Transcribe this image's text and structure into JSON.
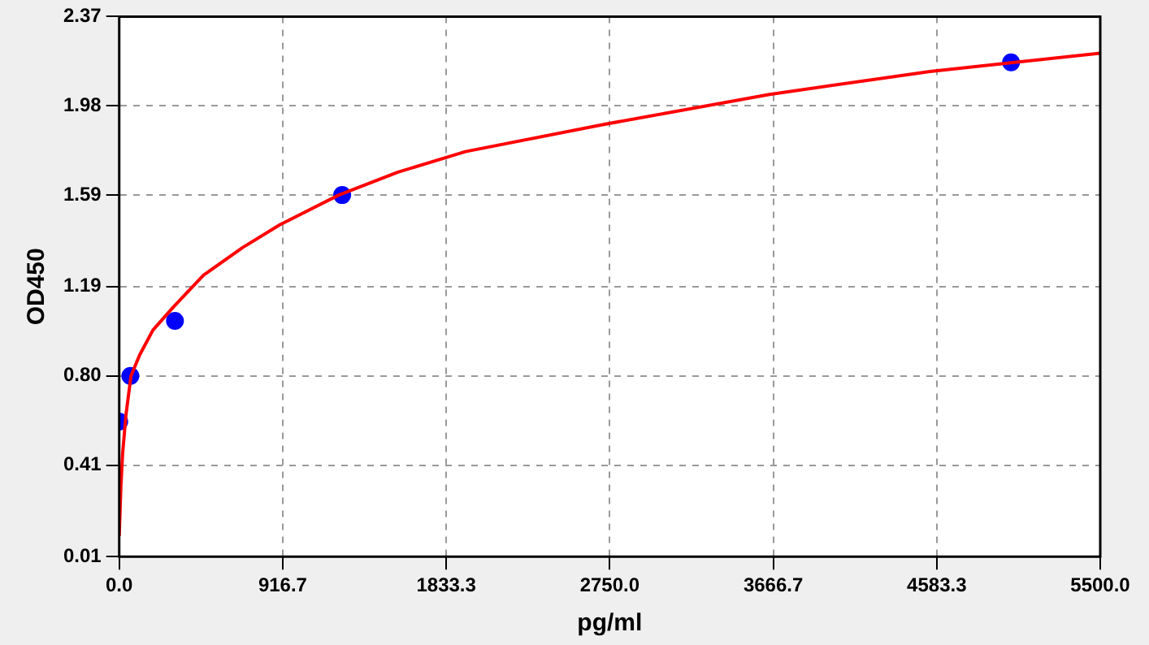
{
  "chart_data": {
    "type": "scatter",
    "xlabel": "pg/ml",
    "ylabel": "OD450",
    "xlim": [
      0,
      5500
    ],
    "ylim": [
      0.01,
      2.37
    ],
    "xticks": [
      {
        "value": 0,
        "label": "0.0"
      },
      916.7,
      1833.3,
      {
        "value": 2750,
        "label": "2750.0"
      },
      3666.7,
      4583.3,
      {
        "value": 5500,
        "label": "5500.0"
      }
    ],
    "yticks": [
      0.01,
      0.41,
      {
        "value": 0.8,
        "label": "0.80"
      },
      1.19,
      1.59,
      1.98,
      2.37
    ],
    "grid": true,
    "legend": false,
    "series": [
      {
        "type": "scatter",
        "color": "#0000ff",
        "marker": "circle",
        "x": [
          0,
          62.5,
          312.5,
          1250,
          5000
        ],
        "values": [
          0.6,
          0.8,
          1.04,
          1.59,
          2.17
        ]
      },
      {
        "type": "line",
        "color": "#ff0000",
        "marker": "none",
        "x": [
          0,
          9.5,
          19,
          38,
          66,
          114,
          189,
          303,
          473,
          691,
          900,
          1231,
          1563,
          1941,
          2727,
          3646,
          4546,
          5500
        ],
        "values": [
          0.1,
          0.32,
          0.46,
          0.63,
          0.8,
          0.89,
          1.0,
          1.1,
          1.24,
          1.36,
          1.46,
          1.59,
          1.69,
          1.78,
          1.9,
          2.03,
          2.13,
          2.21
        ]
      }
    ]
  }
}
